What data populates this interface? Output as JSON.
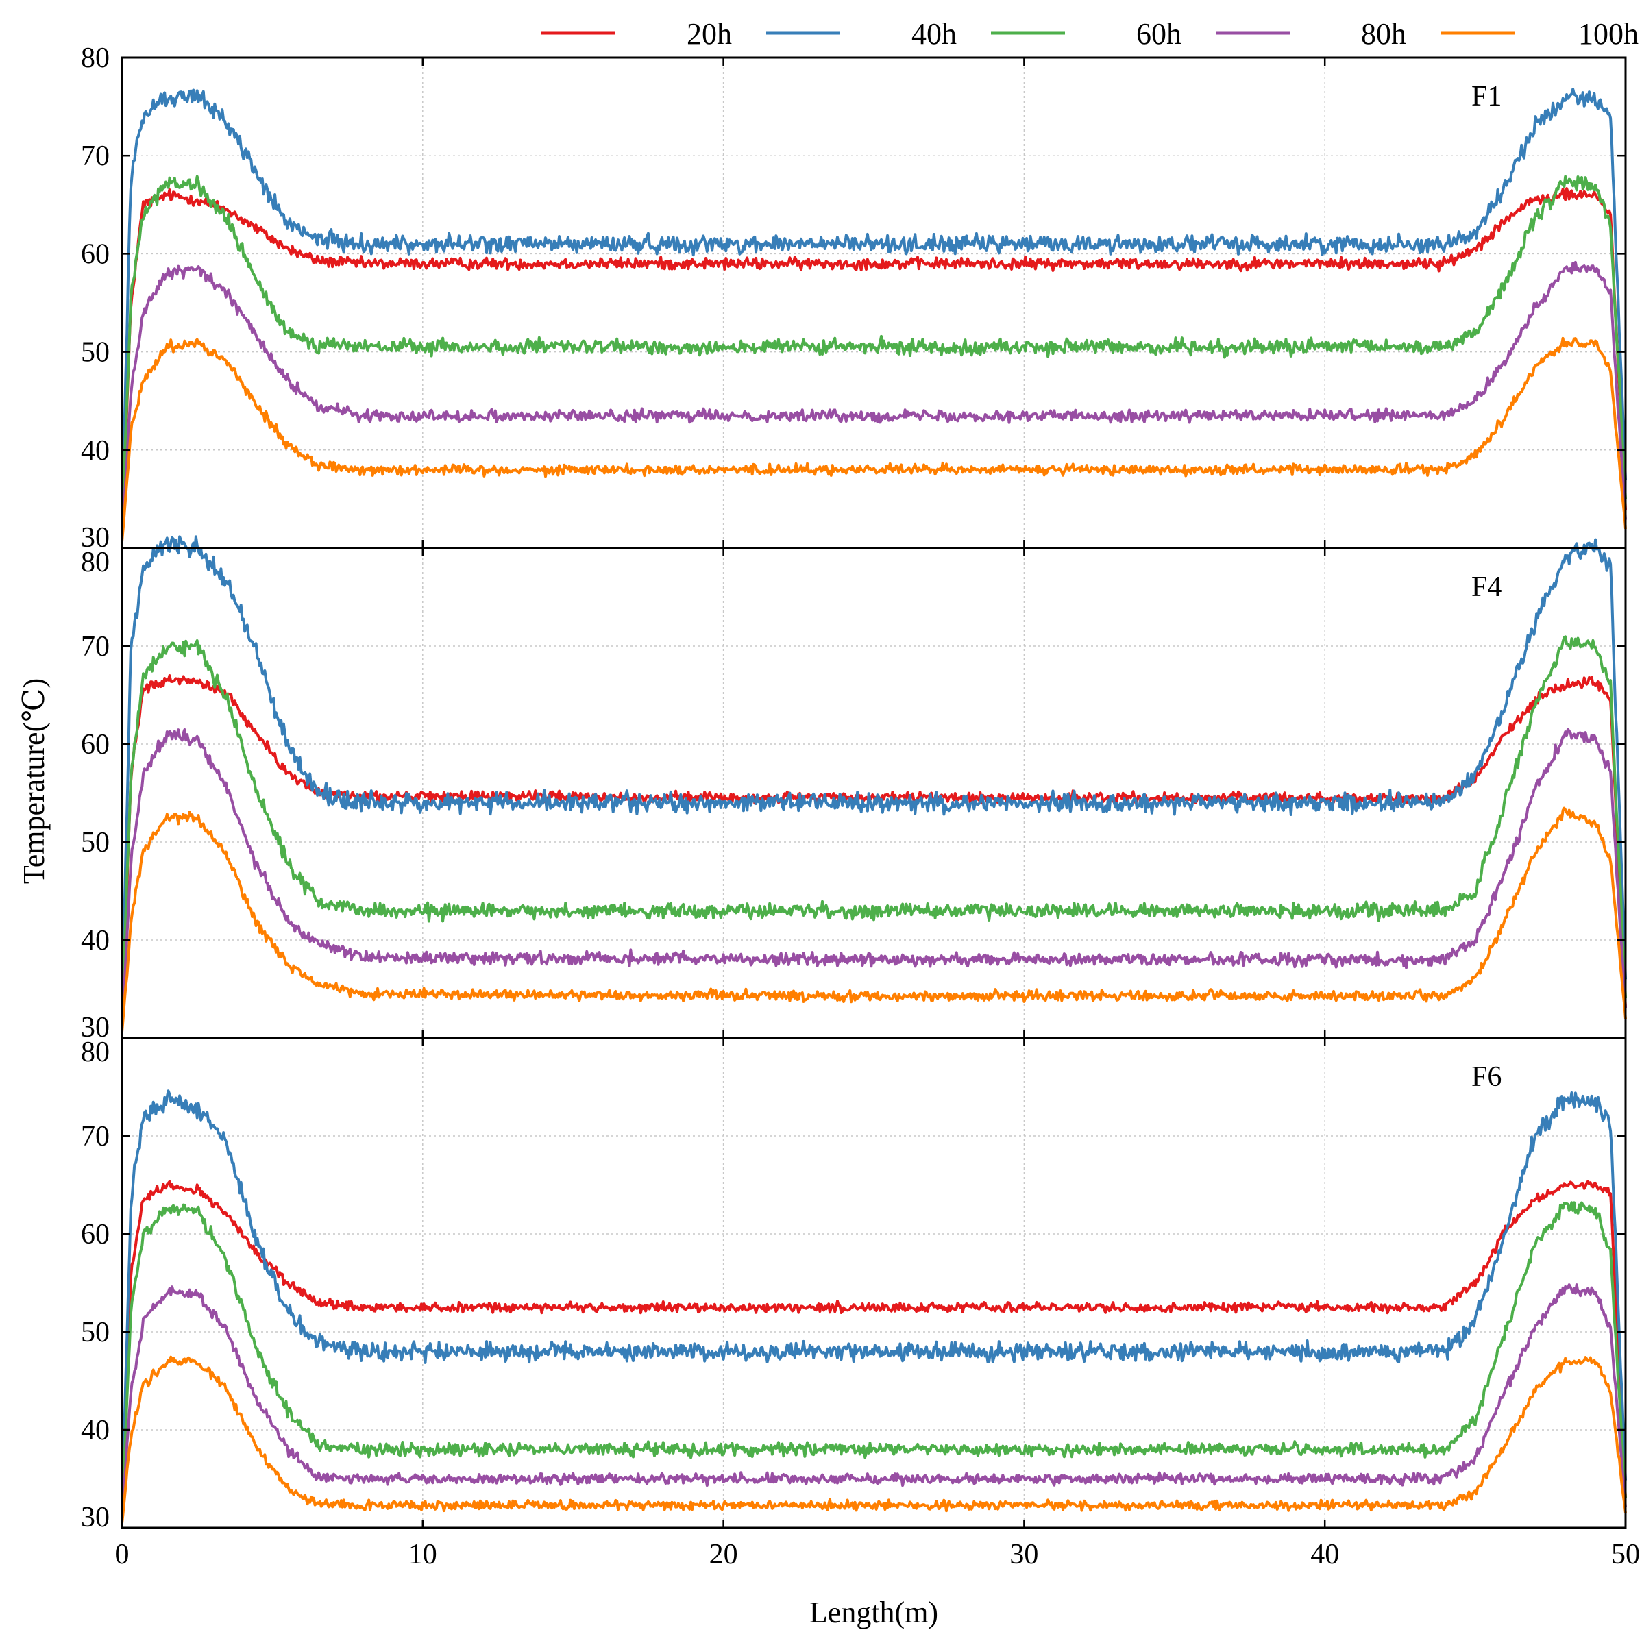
{
  "chart_data": {
    "type": "line",
    "xlabel": "Length(m)",
    "ylabel": "Temperature(℃)",
    "xlim": [
      0,
      50
    ],
    "ylim": [
      30,
      80
    ],
    "xticks": [
      "0",
      "10",
      "20",
      "30",
      "40",
      "50"
    ],
    "yticks": [
      "30",
      "40",
      "50",
      "60",
      "70",
      "80"
    ],
    "grid": true,
    "legend_position": "top",
    "series_names": [
      "20h",
      "40h",
      "60h",
      "80h",
      "100h"
    ],
    "series_colors": [
      "#e41a1c",
      "#377eb8",
      "#4daf4a",
      "#984ea3",
      "#ff7f00"
    ],
    "profile_x_m": [
      0,
      0.3,
      0.7,
      1.5,
      2.5,
      3.5,
      4.5,
      5.5,
      6.5,
      8,
      25,
      44,
      45,
      46,
      47,
      48,
      49,
      49.5,
      50
    ],
    "panels": [
      {
        "label": "F1",
        "series": [
          {
            "name": "20h",
            "noise": 0.45,
            "values": [
              31,
              55,
              65,
              66,
              65.5,
              64.5,
              62.5,
              60.5,
              59.3,
              59,
              59,
              59,
              60.5,
              63.5,
              65.5,
              66,
              66,
              64,
              34
            ]
          },
          {
            "name": "40h",
            "noise": 0.7,
            "values": [
              33,
              68,
              74,
              76,
              76,
              73.5,
              68,
              63,
              61.5,
              61,
              61,
              61,
              62,
              67,
              73,
              76,
              76,
              74,
              37
            ]
          },
          {
            "name": "60h",
            "noise": 0.6,
            "values": [
              32,
              56,
              64,
              67,
              67,
              63.5,
              57,
              52,
              50.8,
              50.5,
              50.5,
              50.5,
              52,
              57,
              63.5,
              67.3,
              67,
              63,
              35
            ]
          },
          {
            "name": "80h",
            "noise": 0.45,
            "values": [
              31,
              46,
              54,
              58,
              58.5,
              56,
              51.5,
              47,
              44.5,
              43.5,
              43.5,
              43.5,
              45,
              49,
              54.5,
              58.5,
              58.5,
              56,
              33
            ]
          },
          {
            "name": "100h",
            "noise": 0.4,
            "values": [
              30.5,
              42,
              47,
              50.5,
              51,
              49,
              44.5,
              40.5,
              38.5,
              38,
              38,
              38,
              39.5,
              43.5,
              48.5,
              51,
              51,
              48,
              32
            ]
          }
        ]
      },
      {
        "label": "F4",
        "series": [
          {
            "name": "20h",
            "noise": 0.4,
            "values": [
              31,
              57,
              65.5,
              66.5,
              66.5,
              65,
              61,
              57,
              55,
              54.7,
              54.5,
              54.5,
              56.5,
              61,
              64.5,
              66,
              66.5,
              64.5,
              33
            ]
          },
          {
            "name": "40h",
            "noise": 0.75,
            "values": [
              33,
              70,
              78,
              80.5,
              80,
              76.5,
              69,
              60,
              55,
              54,
              54,
              54,
              57,
              64,
              72.5,
              79,
              80.5,
              78,
              36
            ]
          },
          {
            "name": "60h",
            "noise": 0.6,
            "values": [
              32,
              57,
              67,
              70,
              70,
              64.5,
              55,
              48,
              44,
              43,
              43,
              43,
              45,
              54,
              64,
              70.5,
              70,
              66,
              34
            ]
          },
          {
            "name": "80h",
            "noise": 0.5,
            "values": [
              31,
              48,
              57,
              61,
              60.5,
              55.5,
              47.5,
              42,
              39.5,
              38.2,
              38,
              38,
              40,
              47,
              55.5,
              61,
              60.5,
              57,
              33
            ]
          },
          {
            "name": "100h",
            "noise": 0.4,
            "values": [
              30.5,
              42,
              49,
              52.5,
              52.5,
              48.5,
              41.5,
              37.5,
              35.5,
              34.5,
              34.3,
              34.3,
              36,
              42,
              49,
              53,
              52,
              48,
              32
            ]
          }
        ]
      },
      {
        "label": "F6",
        "series": [
          {
            "name": "20h",
            "noise": 0.35,
            "values": [
              31,
              56,
              63.5,
              65,
              64.5,
              62,
              58,
              55,
              53,
              52.5,
              52.5,
              52.5,
              55,
              60.5,
              63.5,
              65,
              65,
              64,
              33
            ]
          },
          {
            "name": "40h",
            "noise": 0.7,
            "values": [
              32,
              64,
              72,
              73.5,
              73,
              69,
              59,
              52,
              49,
              48,
              48,
              48,
              51,
              60,
              70,
              73.5,
              73.5,
              71,
              35
            ]
          },
          {
            "name": "60h",
            "noise": 0.5,
            "values": [
              31.5,
              52,
              60,
              62.5,
              62.5,
              57,
              48,
              42,
              38.5,
              38,
              38,
              38,
              41,
              50,
              59,
              63,
              62.5,
              58,
              33
            ]
          },
          {
            "name": "80h",
            "noise": 0.4,
            "values": [
              31,
              44,
              51,
              54,
              54,
              50,
              43,
              38,
              35.3,
              35,
              35,
              35,
              37,
              44,
              50.5,
              54.5,
              54,
              50.5,
              32
            ]
          },
          {
            "name": "100h",
            "noise": 0.35,
            "values": [
              30.5,
              39.5,
              44.5,
              47,
              47,
              44,
              38,
              34,
              32.5,
              32.3,
              32.3,
              32.3,
              33.5,
              38.5,
              44,
              47,
              47,
              44,
              31.5
            ]
          }
        ]
      }
    ]
  }
}
